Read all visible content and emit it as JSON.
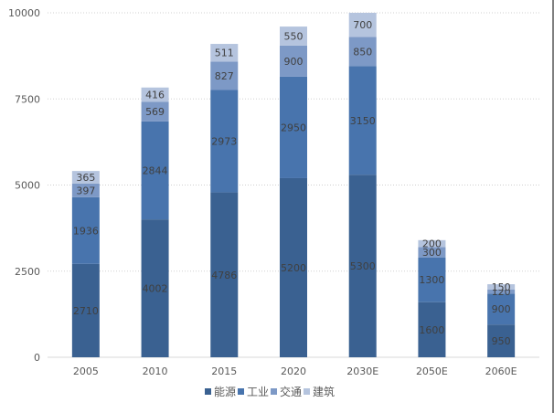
{
  "chart_data": {
    "type": "bar",
    "stacked": true,
    "title": "",
    "xlabel": "",
    "ylabel": "",
    "ylim": [
      0,
      10000
    ],
    "yticks": [
      0,
      2500,
      5000,
      7500,
      10000
    ],
    "ytick_labels": [
      "0",
      "2500",
      "5000",
      "7500",
      "10000"
    ],
    "grid": true,
    "legend_position": "bottom",
    "categories": [
      "2005",
      "2010",
      "2015",
      "2020",
      "2030E",
      "2050E",
      "2060E"
    ],
    "series": [
      {
        "name": "能源",
        "color": "#3a6191",
        "values": [
          2710,
          4002,
          4786,
          5200,
          5300,
          1600,
          950
        ]
      },
      {
        "name": "工业",
        "color": "#4874ad",
        "values": [
          1936,
          2844,
          2973,
          2950,
          3150,
          1300,
          900
        ]
      },
      {
        "name": "交通",
        "color": "#7d99c6",
        "values": [
          397,
          569,
          827,
          900,
          850,
          300,
          120
        ]
      },
      {
        "name": "建筑",
        "color": "#b5c4de",
        "values": [
          365,
          416,
          511,
          550,
          700,
          200,
          150
        ]
      }
    ]
  }
}
